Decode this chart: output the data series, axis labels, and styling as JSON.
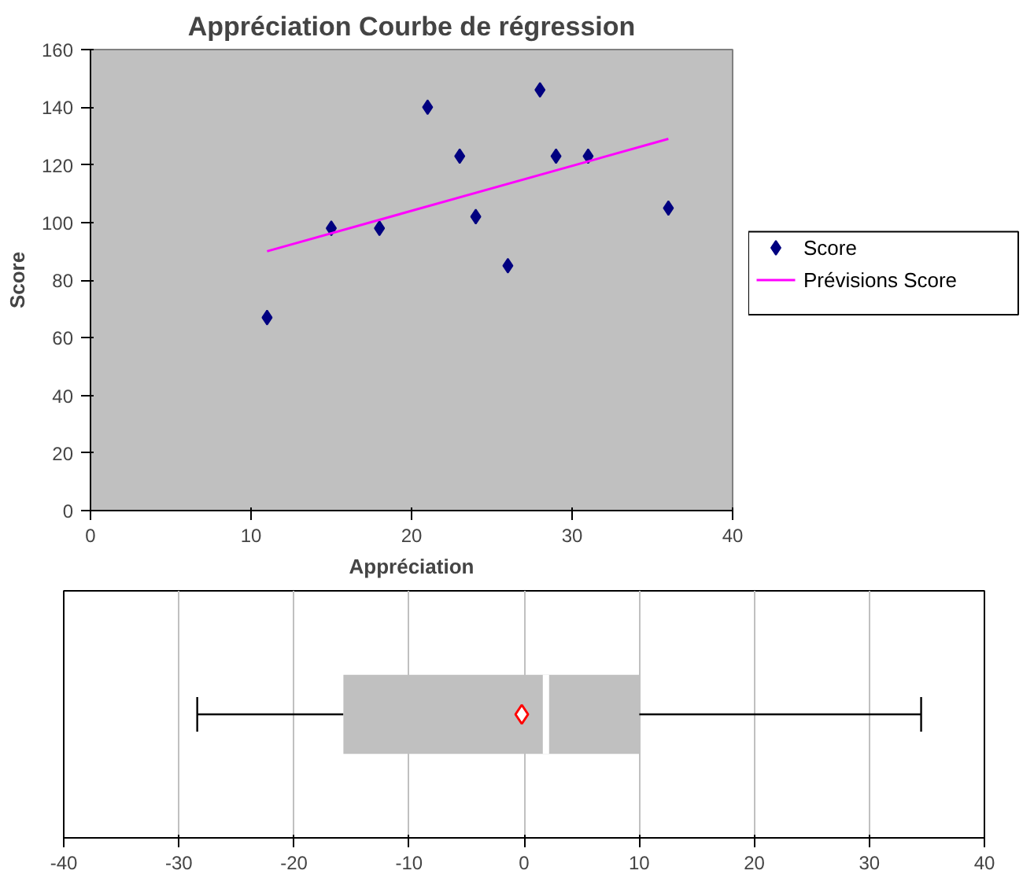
{
  "chart_data": [
    {
      "type": "scatter",
      "title": "Appréciation Courbe de régression",
      "xlabel": "Appréciation",
      "ylabel": "Score",
      "xlim": [
        0,
        40
      ],
      "xticks": [
        0,
        10,
        20,
        30,
        40
      ],
      "ylim": [
        0,
        160
      ],
      "yticks": [
        0,
        20,
        40,
        60,
        80,
        100,
        120,
        140,
        160
      ],
      "grid": false,
      "legend": "right",
      "series": [
        {
          "type": "scatter",
          "name": "Score",
          "color": "#000080",
          "marker": "diamond",
          "x": [
            11,
            15,
            18,
            21,
            23,
            24,
            26,
            28,
            29,
            31,
            36
          ],
          "values": [
            67,
            98,
            98,
            140,
            123,
            102,
            85,
            146,
            123,
            123,
            105
          ]
        },
        {
          "type": "line",
          "name": "Prévisions Score",
          "color": "#ff00ff",
          "marker": "none",
          "x": [
            11,
            36
          ],
          "values": [
            90,
            129
          ]
        }
      ]
    },
    {
      "type": "box",
      "orientation": "horizontal",
      "categories": [
        null
      ],
      "xlim": [
        -40,
        40
      ],
      "xticks": [
        -40,
        -30,
        -20,
        -10,
        0,
        10,
        20,
        30,
        40
      ],
      "grid": "x",
      "boxes": [
        {
          "low": -28.4,
          "q1": -15.7,
          "median": 1.9,
          "q3": 10,
          "high": 34.5,
          "mean": -0.2
        }
      ]
    }
  ]
}
